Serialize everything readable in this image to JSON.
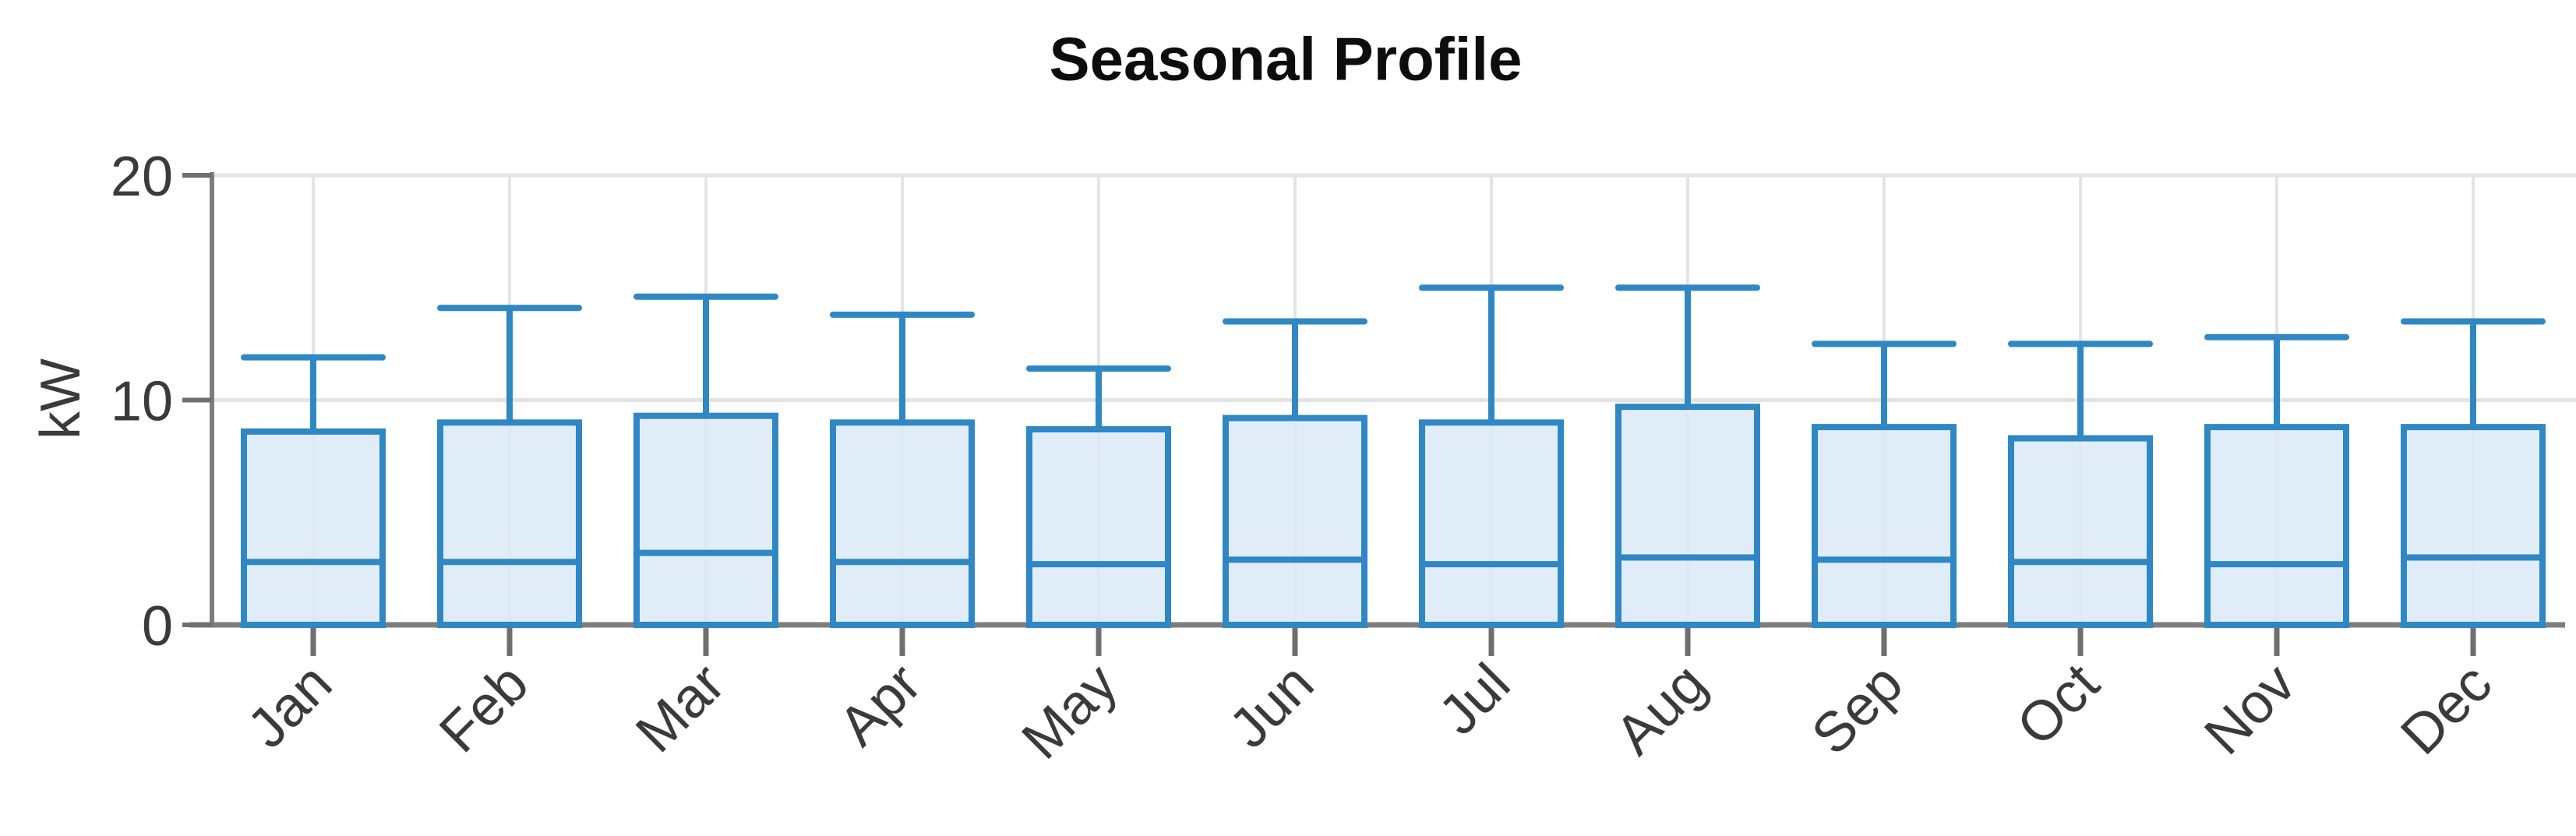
{
  "chart_data": {
    "type": "box",
    "title": "Seasonal Profile",
    "xlabel": "",
    "ylabel": "kW",
    "ylim": [
      0,
      20
    ],
    "yticks": [
      0,
      10,
      20
    ],
    "grid": true,
    "legend": "none",
    "categories": [
      "Jan",
      "Feb",
      "Mar",
      "Apr",
      "May",
      "Jun",
      "Jul",
      "Aug",
      "Sep",
      "Oct",
      "Nov",
      "Dec"
    ],
    "series": [
      {
        "name": "Jan",
        "min": 0,
        "q1": 0,
        "median": 2.8,
        "q3": 8.6,
        "max": 11.9
      },
      {
        "name": "Feb",
        "min": 0,
        "q1": 0,
        "median": 2.8,
        "q3": 9.0,
        "max": 14.1
      },
      {
        "name": "Mar",
        "min": 0,
        "q1": 0,
        "median": 3.2,
        "q3": 9.3,
        "max": 14.6
      },
      {
        "name": "Apr",
        "min": 0,
        "q1": 0,
        "median": 2.8,
        "q3": 9.0,
        "max": 13.8
      },
      {
        "name": "May",
        "min": 0,
        "q1": 0,
        "median": 2.7,
        "q3": 8.7,
        "max": 11.4
      },
      {
        "name": "Jun",
        "min": 0,
        "q1": 0,
        "median": 2.9,
        "q3": 9.2,
        "max": 13.5
      },
      {
        "name": "Jul",
        "min": 0,
        "q1": 0,
        "median": 2.7,
        "q3": 9.0,
        "max": 15.0
      },
      {
        "name": "Aug",
        "min": 0,
        "q1": 0,
        "median": 3.0,
        "q3": 9.7,
        "max": 15.0
      },
      {
        "name": "Sep",
        "min": 0,
        "q1": 0,
        "median": 2.9,
        "q3": 8.8,
        "max": 12.5
      },
      {
        "name": "Oct",
        "min": 0,
        "q1": 0,
        "median": 2.8,
        "q3": 8.3,
        "max": 12.5
      },
      {
        "name": "Nov",
        "min": 0,
        "q1": 0,
        "median": 2.7,
        "q3": 8.8,
        "max": 12.8
      },
      {
        "name": "Dec",
        "min": 0,
        "q1": 0,
        "median": 3.0,
        "q3": 8.8,
        "max": 13.5
      }
    ],
    "colors": {
      "box_border": "#2f87c4",
      "box_fill": "rgba(219,234,247,0.85)",
      "grid_line": "#e4e4e4",
      "axis_line": "#7d7d7d",
      "tick_mark": "#6f6f6f",
      "tick_label": "#3a3a3a",
      "title_text": "#0d0d0d"
    }
  }
}
